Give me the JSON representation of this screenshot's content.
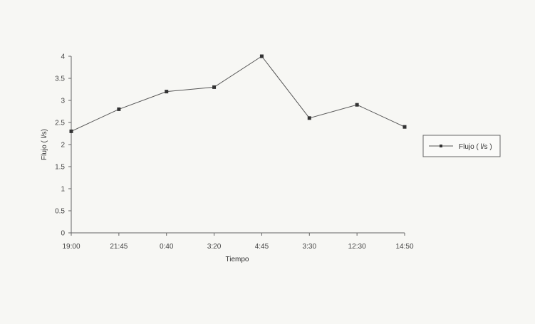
{
  "chart_data": {
    "type": "line",
    "title": "",
    "xlabel": "Tiempo",
    "ylabel": "Flujo ( l/s)",
    "categories": [
      "19:00",
      "21:45",
      "0:40",
      "3:20",
      "4:45",
      "3:30",
      "12:30",
      "14:50"
    ],
    "series": [
      {
        "name": "Flujo ( l/s )",
        "values": [
          2.3,
          2.8,
          3.2,
          3.3,
          4.0,
          2.6,
          2.9,
          2.4
        ]
      }
    ],
    "ylim": [
      0,
      4
    ],
    "yticks": [
      "0",
      "0.5",
      "1",
      "1.5",
      "2",
      "2.5",
      "3",
      "3.5",
      "4"
    ],
    "grid": false,
    "legend": "right",
    "colors": {
      "line": "#555555",
      "marker": "#333333",
      "axis": "#666666"
    }
  }
}
